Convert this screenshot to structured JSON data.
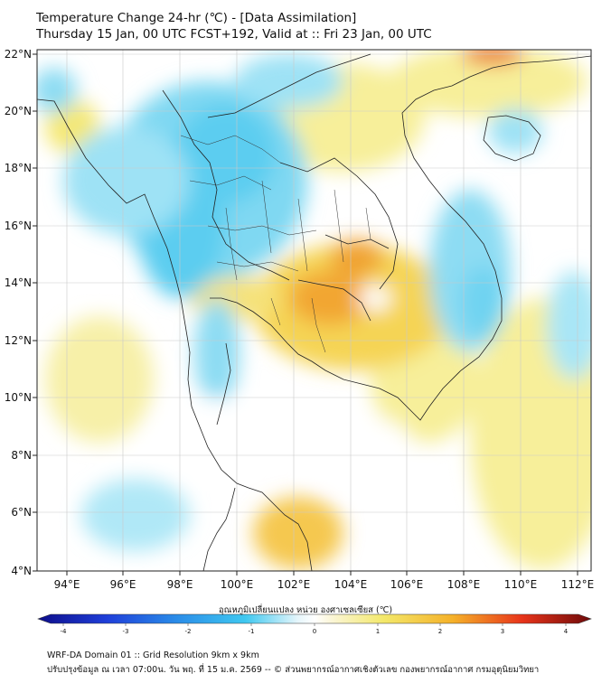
{
  "header": {
    "title_line1": "Temperature Change 24-hr (℃) - [Data Assimilation]",
    "title_line2": "Thursday 15 Jan, 00 UTC FCST+192, Valid at :: Fri 23 Jan, 00 UTC"
  },
  "map": {
    "lon_ticks": [
      "94°E",
      "96°E",
      "98°E",
      "100°E",
      "102°E",
      "104°E",
      "106°E",
      "108°E",
      "110°E",
      "112°E"
    ],
    "lat_ticks": [
      "22°N",
      "20°N",
      "18°N",
      "16°N",
      "14°N",
      "12°N",
      "10°N",
      "8°N",
      "6°N",
      "4°N"
    ],
    "lon_range": [
      93,
      112.5
    ],
    "lat_range": [
      4,
      22.2
    ]
  },
  "colorbar": {
    "label": "อุณหภูมิเปลี่ยนแปลง หน่วย องศาเซลเซียส (℃)",
    "ticks": [
      "-4",
      "-3",
      "-2",
      "-1",
      "0",
      "1",
      "2",
      "3",
      "4"
    ],
    "range": [
      -4,
      4
    ],
    "colors": [
      "#0d0d8a",
      "#1f3fd9",
      "#2a8ce8",
      "#3fc8f0",
      "#ffffff",
      "#f3e86a",
      "#f5b129",
      "#e8341a",
      "#6e0a0a"
    ]
  },
  "footer": {
    "line1": "WRF-DA Domain 01 :: Grid Resolution 9km x 9km",
    "line2": "ปรับปรุงข้อมูล ณ เวลา 07:00น. วัน พฤ. ที่ 15 ม.ค. 2569 -- © ส่วนพยากรณ์อากาศเชิงตัวเลข กองพยากรณ์อากาศ กรมอุตุนิยมวิทยา"
  }
}
